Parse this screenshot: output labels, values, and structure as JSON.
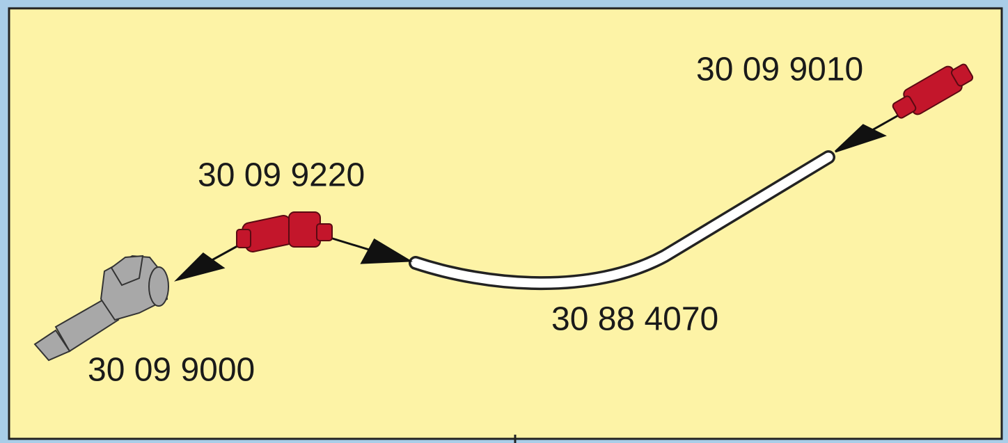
{
  "parts": [
    {
      "number": "30 09 9010"
    },
    {
      "number": "30 09 9220"
    },
    {
      "number": "30 88 4070"
    },
    {
      "number": "30 09 9000"
    }
  ]
}
